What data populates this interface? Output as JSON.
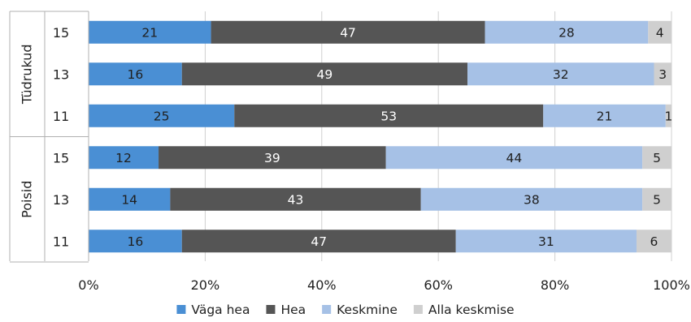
{
  "chart_data": {
    "type": "bar",
    "orientation": "horizontal",
    "stacked": true,
    "stacking": "percent",
    "xlim": [
      0,
      100
    ],
    "x_ticks": [
      "0%",
      "20%",
      "40%",
      "60%",
      "80%",
      "100%"
    ],
    "x_tick_values": [
      0,
      20,
      40,
      60,
      80,
      100
    ],
    "grid": true,
    "legend_position": "bottom",
    "groups": [
      {
        "name": "Tüdrukud",
        "categories": [
          "15",
          "13",
          "11"
        ]
      },
      {
        "name": "Poisid",
        "categories": [
          "15",
          "13",
          "11"
        ]
      }
    ],
    "series": [
      {
        "name": "Väga hea",
        "color": "#4a8fd4",
        "label_color": "#1f1f1f",
        "values": [
          21,
          16,
          25,
          12,
          14,
          16
        ]
      },
      {
        "name": "Hea",
        "color": "#555555",
        "label_color": "#ffffff",
        "values": [
          47,
          49,
          53,
          39,
          43,
          47
        ]
      },
      {
        "name": "Keskmine",
        "color": "#a6c1e6",
        "label_color": "#1f1f1f",
        "values": [
          28,
          32,
          21,
          44,
          38,
          31
        ]
      },
      {
        "name": "Alla keskmise",
        "color": "#cfcfcf",
        "label_color": "#1f1f1f",
        "values": [
          4,
          3,
          1,
          5,
          5,
          6
        ]
      }
    ]
  }
}
